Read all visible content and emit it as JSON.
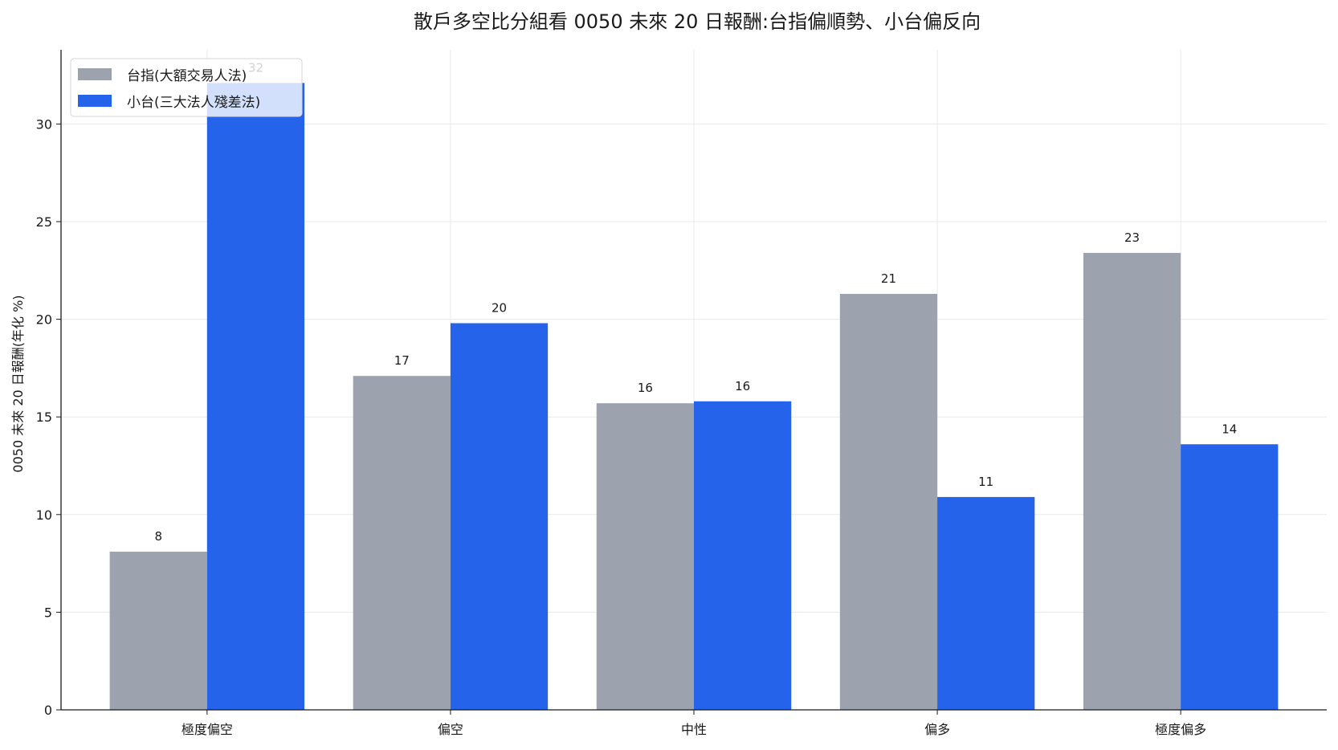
{
  "chart_data": {
    "type": "bar",
    "title": "散戶多空比分組看 0050 未來 20 日報酬:台指偏順勢、小台偏反向",
    "xlabel": "",
    "ylabel": "0050 未來 20 日報酬(年化 %)",
    "categories": [
      "極度偏空",
      "偏空",
      "中性",
      "偏多",
      "極度偏多"
    ],
    "series": [
      {
        "name": "台指(大額交易人法)",
        "color": "#9ca3af",
        "values": [
          8.1,
          17.1,
          15.7,
          21.3,
          23.4
        ],
        "labels": [
          "8",
          "17",
          "16",
          "21",
          "23"
        ]
      },
      {
        "name": "小台(三大法人殘差法)",
        "color": "#2563eb",
        "values": [
          32.1,
          19.8,
          15.8,
          10.9,
          13.6
        ],
        "labels": [
          "32",
          "20",
          "16",
          "11",
          "14"
        ]
      }
    ],
    "ylim": [
      0,
      33.8
    ],
    "yticks": [
      0,
      5,
      10,
      15,
      20,
      25,
      30
    ],
    "grid": true,
    "legend_position": "top-left"
  }
}
